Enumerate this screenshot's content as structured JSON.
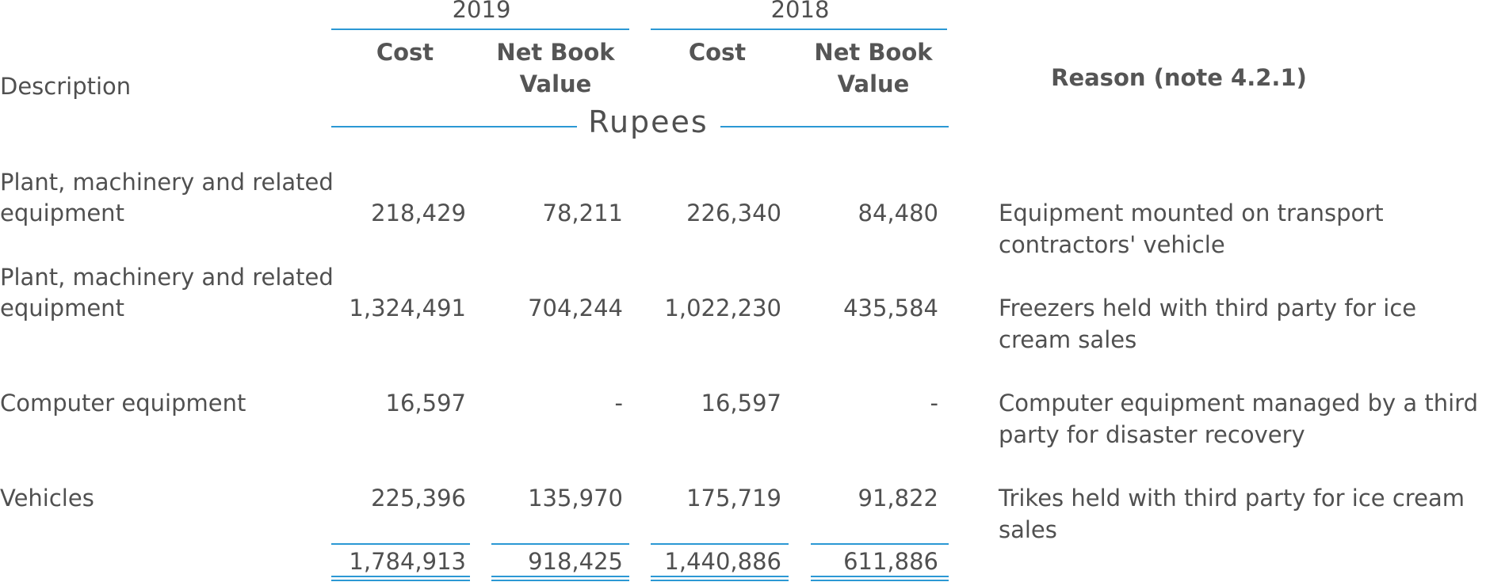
{
  "header": {
    "year_2019": "2019",
    "year_2018": "2018",
    "cost_label": "Cost",
    "nbv_label_line1": "Net Book",
    "nbv_label_line2": "Value",
    "description_label": "Description",
    "reason_label": "Reason (note 4.2.1)",
    "currency_label": "Rupees"
  },
  "rows": [
    {
      "description_line1": "Plant, machinery and related",
      "description_line2": "equipment",
      "cost_2019": "218,429",
      "nbv_2019": "78,211",
      "cost_2018": "226,340",
      "nbv_2018": "84,480",
      "reason_line1": "Equipment mounted on transport",
      "reason_line2": "contractors' vehicle"
    },
    {
      "description_line1": "Plant, machinery and related",
      "description_line2": "equipment",
      "cost_2019": "1,324,491",
      "nbv_2019": "704,244",
      "cost_2018": "1,022,230",
      "nbv_2018": "435,584",
      "reason_line1": "Freezers held with third party for ice",
      "reason_line2": "cream sales"
    },
    {
      "description_line1": "Computer equipment",
      "cost_2019": "16,597",
      "nbv_2019": "-",
      "cost_2018": "16,597",
      "nbv_2018": "-",
      "reason_line1": "Computer equipment managed by a third",
      "reason_line2": "party for disaster recovery"
    },
    {
      "description_line1": "Vehicles",
      "cost_2019": "225,396",
      "nbv_2019": "135,970",
      "cost_2018": "175,719",
      "nbv_2018": "91,822",
      "reason_line1": "Trikes held with third party for ice cream",
      "reason_line2": "sales"
    }
  ],
  "totals": {
    "cost_2019": "1,784,913",
    "nbv_2019": "918,425",
    "cost_2018": "1,440,886",
    "nbv_2018": "611,886"
  },
  "colors": {
    "rule": "#2b98d4",
    "text": "#505050"
  }
}
